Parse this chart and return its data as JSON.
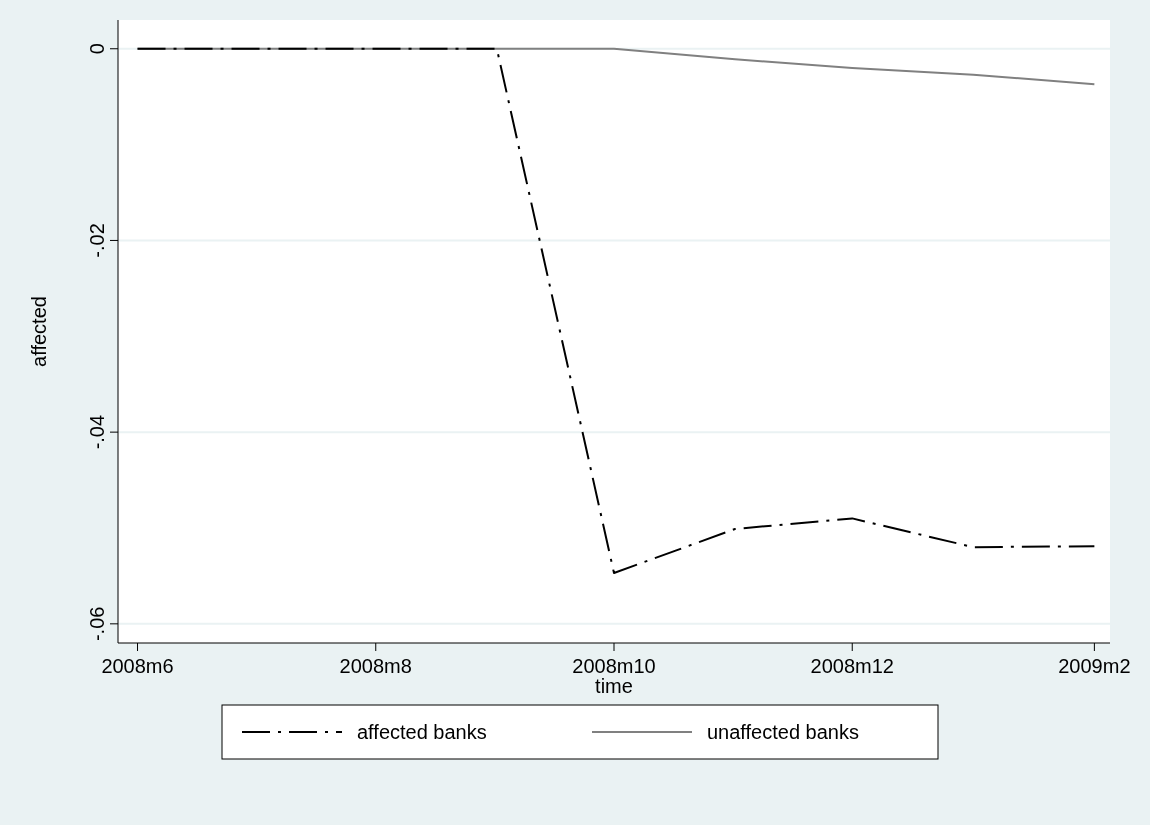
{
  "chart_data": {
    "type": "line",
    "xlabel": "time",
    "ylabel": "affected",
    "x": [
      "2008-06",
      "2008-07",
      "2008-08",
      "2008-09",
      "2008-10",
      "2008-11",
      "2008-12",
      "2009-01",
      "2009-02"
    ],
    "series": [
      {
        "name": "affected banks",
        "color": "#000000",
        "line_style": "dashed",
        "values": [
          0,
          0,
          0,
          0,
          -0.0547,
          -0.0501,
          -0.049,
          -0.052,
          -0.0519
        ]
      },
      {
        "name": "unaffected banks",
        "color": "#808080",
        "line_style": "solid",
        "values": [
          0,
          0,
          0,
          0,
          0,
          -0.0011,
          -0.002,
          -0.0027,
          -0.0037
        ]
      }
    ],
    "xlim": [
      "2008-05-27",
      "2009-02-05"
    ],
    "ylim": [
      -0.062,
      0.003
    ],
    "xticks": [
      {
        "value": "2008-06",
        "label": "2008m6"
      },
      {
        "value": "2008-08",
        "label": "2008m8"
      },
      {
        "value": "2008-10",
        "label": "2008m10"
      },
      {
        "value": "2008-12",
        "label": "2008m12"
      },
      {
        "value": "2009-02",
        "label": "2009m2"
      }
    ],
    "yticks": [
      {
        "value": 0,
        "label": "0"
      },
      {
        "value": -0.02,
        "label": "-.02"
      },
      {
        "value": -0.04,
        "label": "-.04"
      },
      {
        "value": -0.06,
        "label": "-.06"
      }
    ],
    "grid": "y",
    "legend": "bottom",
    "marker": "none"
  }
}
